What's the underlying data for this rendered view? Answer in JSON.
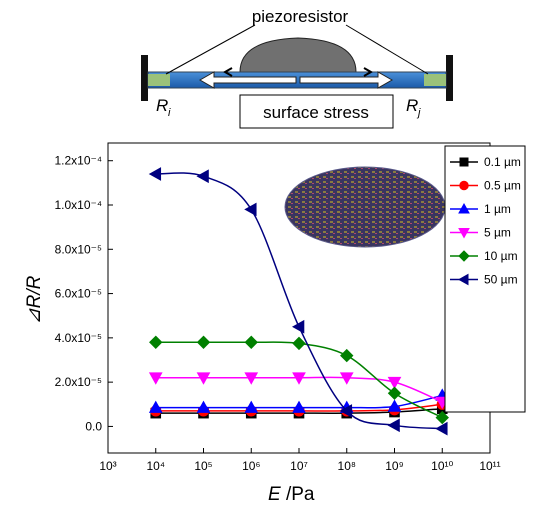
{
  "diagram": {
    "label_top": "piezoresistor",
    "label_bottom": "surface stress",
    "resistor_left": {
      "symbol": "R",
      "subscript": "i"
    },
    "resistor_right": {
      "symbol": "R",
      "subscript": "j"
    }
  },
  "chart_data": {
    "type": "line",
    "x_label_symbol": "E",
    "x_label_unit": "/Pa",
    "y_label": "⊿R/R",
    "xscale": "log",
    "xlim": [
      1000,
      100000000000
    ],
    "xticks": [
      {
        "value": 1000,
        "label": "10³"
      },
      {
        "value": 10000,
        "label": "10⁴"
      },
      {
        "value": 100000,
        "label": "10⁵"
      },
      {
        "value": 1000000,
        "label": "10⁶"
      },
      {
        "value": 10000000,
        "label": "10⁷"
      },
      {
        "value": 100000000,
        "label": "10⁸"
      },
      {
        "value": 1000000000,
        "label": "10⁹"
      },
      {
        "value": 10000000000,
        "label": "10¹⁰"
      },
      {
        "value": 100000000000,
        "label": "10¹¹"
      }
    ],
    "ylim": [
      -1.2e-05,
      0.000128
    ],
    "yticks": [
      {
        "value": 0,
        "label": "0.0"
      },
      {
        "value": 2e-05,
        "label": "2.0x10⁻⁵"
      },
      {
        "value": 4e-05,
        "label": "4.0x10⁻⁵"
      },
      {
        "value": 6e-05,
        "label": "6.0x10⁻⁵"
      },
      {
        "value": 8e-05,
        "label": "8.0x10⁻⁵"
      },
      {
        "value": 0.0001,
        "label": "1.0x10⁻⁴"
      },
      {
        "value": 0.00012,
        "label": "1.2x10⁻⁴"
      }
    ],
    "x": [
      10000,
      100000,
      1000000,
      10000000,
      100000000,
      1000000000,
      10000000000
    ],
    "legend": "upper right",
    "series": [
      {
        "name": "0.1 µm",
        "color": "#000000",
        "marker": "square",
        "values": [
          6e-06,
          6e-06,
          6e-06,
          6e-06,
          6e-06,
          6.5e-06,
          8e-06
        ]
      },
      {
        "name": "0.5 µm",
        "color": "#ff0000",
        "marker": "circle",
        "values": [
          7e-06,
          7e-06,
          7e-06,
          7e-06,
          7e-06,
          7.5e-06,
          1e-05
        ]
      },
      {
        "name": "1 µm",
        "color": "#0000ff",
        "marker": "triangle-up",
        "values": [
          8.5e-06,
          8.5e-06,
          8.5e-06,
          8.5e-06,
          8.5e-06,
          9e-06,
          1.4e-05
        ]
      },
      {
        "name": "5 µm",
        "color": "#ff00ff",
        "marker": "triangle-down",
        "values": [
          2.2e-05,
          2.2e-05,
          2.2e-05,
          2.2e-05,
          2.2e-05,
          2e-05,
          1.1e-05
        ]
      },
      {
        "name": "10 µm",
        "color": "#008000",
        "marker": "diamond",
        "values": [
          3.8e-05,
          3.8e-05,
          3.8e-05,
          3.75e-05,
          3.2e-05,
          1.5e-05,
          4e-06
        ]
      },
      {
        "name": "50 µm",
        "color": "#000080",
        "marker": "triangle-left",
        "values": [
          0.000114,
          0.000113,
          9.8e-05,
          4.5e-05,
          7e-06,
          5e-07,
          -1e-06
        ]
      }
    ]
  }
}
